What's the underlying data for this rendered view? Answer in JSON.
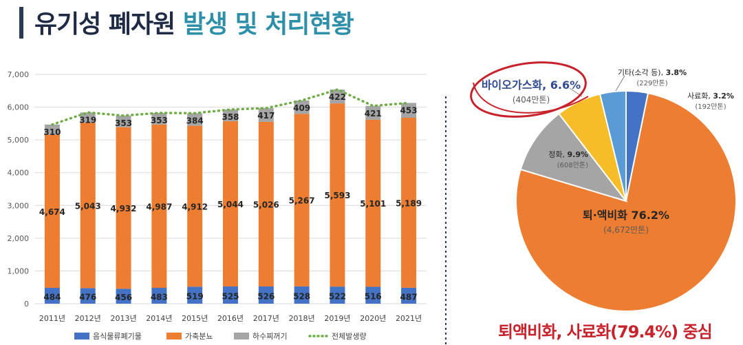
{
  "title": {
    "part1": "유기성 폐자원",
    "part2": "발생 및 처리현황"
  },
  "chart_data": [
    {
      "type": "bar",
      "stacked": true,
      "categories": [
        "2011년",
        "2012년",
        "2013년",
        "2014년",
        "2015년",
        "2016년",
        "2017년",
        "2018년",
        "2019년",
        "2020년",
        "2021년"
      ],
      "series": [
        {
          "name": "음식물류폐기물",
          "color": "#4472c4",
          "values": [
            484,
            476,
            456,
            483,
            519,
            525,
            526,
            528,
            522,
            516,
            487
          ]
        },
        {
          "name": "가축분뇨",
          "color": "#ed7d31",
          "values": [
            4674,
            5043,
            4932,
            4987,
            4912,
            5044,
            5026,
            5267,
            5593,
            5101,
            5189
          ]
        },
        {
          "name": "하수찌꺼기",
          "color": "#a5a5a5",
          "values": [
            310,
            319,
            353,
            353,
            384,
            358,
            417,
            409,
            422,
            421,
            453
          ]
        },
        {
          "name": "전체발생량",
          "type": "line",
          "style": "dotted",
          "color": "#70ad47",
          "values": [
            5468,
            5838,
            5741,
            5823,
            5815,
            5927,
            5969,
            6204,
            6537,
            6038,
            6129
          ]
        }
      ],
      "ylim": [
        0,
        7000
      ],
      "yticks": [
        "0",
        "1,000",
        "2,000",
        "3,000",
        "4,000",
        "5,000",
        "6,000",
        "7,000"
      ],
      "grid": true,
      "legend": "bottom"
    },
    {
      "type": "pie",
      "slices": [
        {
          "label": "퇴·액비화",
          "percent": "76.2%",
          "amount": "(4,672만톤)",
          "value": 76.2,
          "color": "#ed7d31"
        },
        {
          "label": "정화,",
          "percent": "9.9%",
          "amount": "(608만톤)",
          "value": 9.9,
          "color": "#a5a5a5"
        },
        {
          "label": "바이오가스화,",
          "percent": "6.6%",
          "amount": "(404만톤)",
          "value": 6.6,
          "color": "#f6bd28"
        },
        {
          "label": "기타(소각 등),",
          "percent": "3.8%",
          "amount": "(229만톤)",
          "value": 3.8,
          "color": "#5b9bd5"
        },
        {
          "label": "사료화,",
          "percent": "3.2%",
          "amount": "(192만톤)",
          "value": 3.2,
          "color": "#4472c4"
        }
      ]
    }
  ],
  "footer": "퇴액비화, 사료화(79.4%) 중심"
}
